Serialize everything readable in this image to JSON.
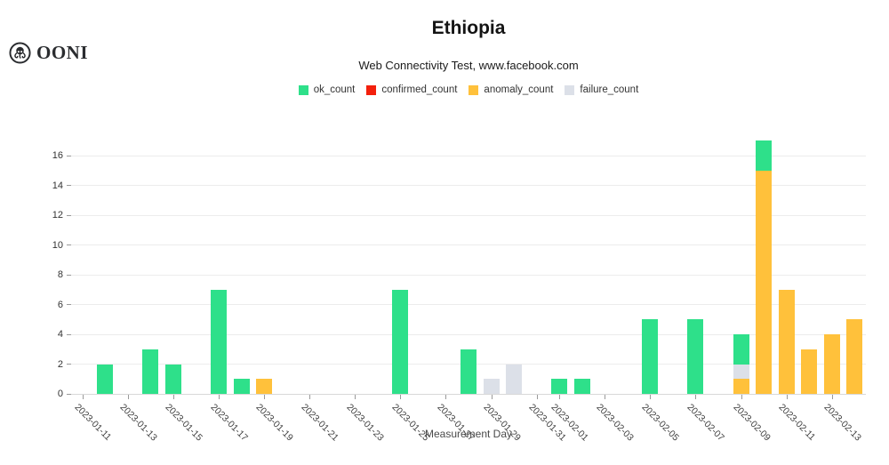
{
  "header": {
    "logo_text": "OONI"
  },
  "chart_data": {
    "type": "bar",
    "stacked": true,
    "title": "Ethiopia",
    "subtitle": "Web Connectivity Test, www.facebook.com",
    "xlabel": "Measurement Day",
    "ylabel": "",
    "grid": "horizontal",
    "legend_position": "top-center",
    "ylim": [
      0,
      17.5
    ],
    "y_ticks": [
      0,
      2,
      4,
      6,
      8,
      10,
      12,
      14,
      16
    ],
    "x_domain_start": "2023-01-11",
    "x_domain_end": "2023-02-14",
    "x_tick_labels": [
      "2023-01-11",
      "2023-01-13",
      "2023-01-15",
      "2023-01-17",
      "2023-01-19",
      "2023-01-21",
      "2023-01-23",
      "2023-01-25",
      "2023-01-27",
      "2023-01-29",
      "2023-01-31",
      "2023-02-01",
      "2023-02-03",
      "2023-02-05",
      "2023-02-07",
      "2023-02-09",
      "2023-02-11",
      "2023-02-13"
    ],
    "legend": [
      {
        "name": "ok_count",
        "color": "#2ee08a"
      },
      {
        "name": "confirmed_count",
        "color": "#f3200c"
      },
      {
        "name": "anomaly_count",
        "color": "#ffc13b"
      },
      {
        "name": "failure_count",
        "color": "#dce0e8"
      }
    ],
    "stack_order": [
      "anomaly_count",
      "failure_count",
      "ok_count"
    ],
    "bars": [
      {
        "date": "2023-01-12",
        "values": {
          "ok_count": 2
        }
      },
      {
        "date": "2023-01-14",
        "values": {
          "ok_count": 3
        }
      },
      {
        "date": "2023-01-15",
        "values": {
          "ok_count": 2
        }
      },
      {
        "date": "2023-01-17",
        "values": {
          "ok_count": 7
        }
      },
      {
        "date": "2023-01-18",
        "values": {
          "ok_count": 1
        }
      },
      {
        "date": "2023-01-19",
        "values": {
          "anomaly_count": 1
        }
      },
      {
        "date": "2023-01-25",
        "values": {
          "ok_count": 7
        }
      },
      {
        "date": "2023-01-28",
        "values": {
          "ok_count": 3
        }
      },
      {
        "date": "2023-01-29",
        "values": {
          "failure_count": 1
        }
      },
      {
        "date": "2023-01-30",
        "values": {
          "failure_count": 2
        }
      },
      {
        "date": "2023-02-01",
        "values": {
          "ok_count": 1
        }
      },
      {
        "date": "2023-02-02",
        "values": {
          "ok_count": 1
        }
      },
      {
        "date": "2023-02-05",
        "values": {
          "ok_count": 5
        }
      },
      {
        "date": "2023-02-07",
        "values": {
          "ok_count": 5
        }
      },
      {
        "date": "2023-02-09",
        "values": {
          "anomaly_count": 1,
          "failure_count": 1,
          "ok_count": 2
        }
      },
      {
        "date": "2023-02-10",
        "values": {
          "anomaly_count": 15,
          "ok_count": 2
        }
      },
      {
        "date": "2023-02-11",
        "values": {
          "anomaly_count": 7
        }
      },
      {
        "date": "2023-02-12",
        "values": {
          "anomaly_count": 3
        }
      },
      {
        "date": "2023-02-13",
        "values": {
          "anomaly_count": 4
        }
      },
      {
        "date": "2023-02-14",
        "values": {
          "anomaly_count": 5
        }
      }
    ]
  }
}
